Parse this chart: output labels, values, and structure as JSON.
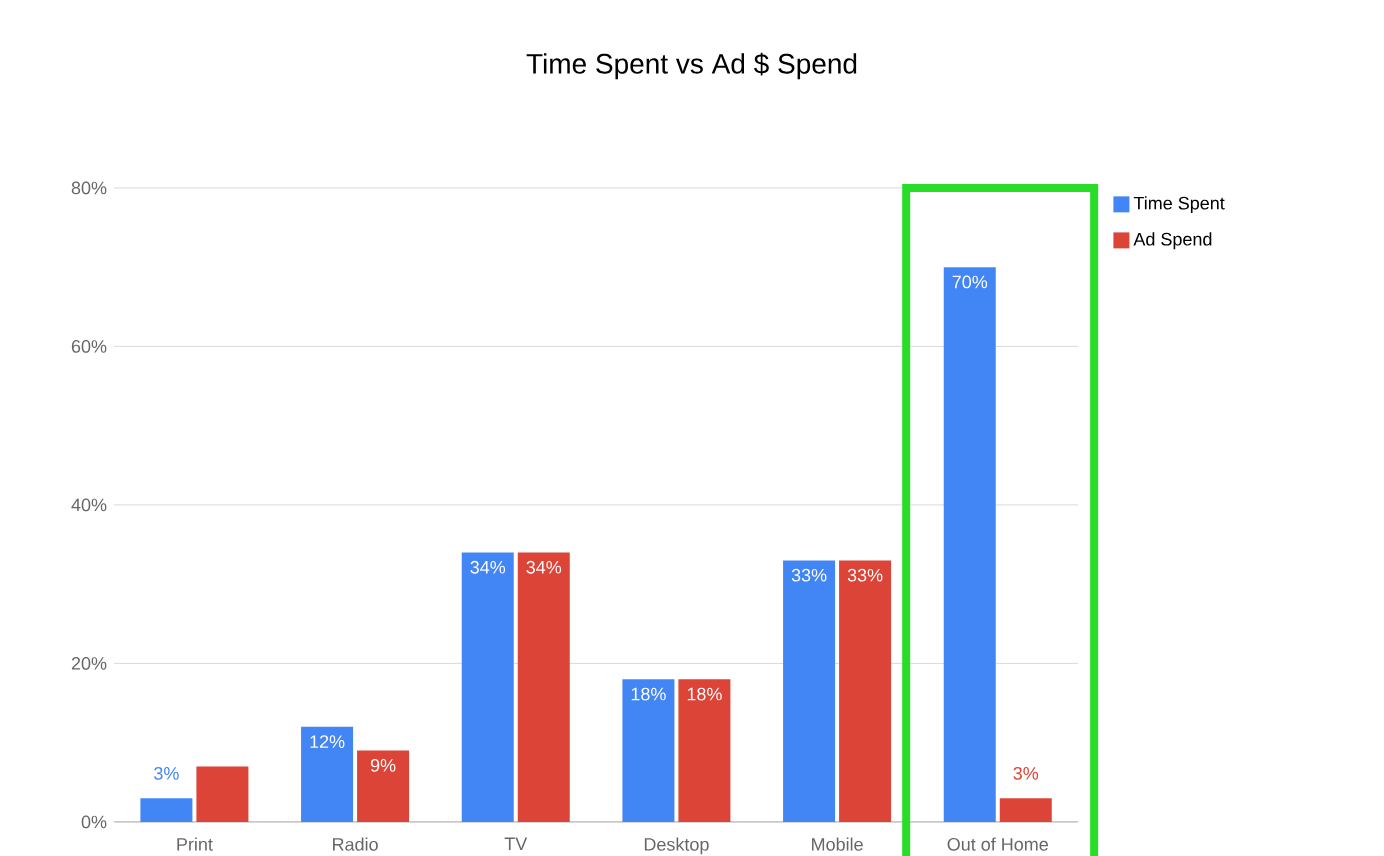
{
  "chart_data": {
    "type": "bar",
    "title": "Time Spent vs Ad $ Spend",
    "categories": [
      "Print",
      "Radio",
      "TV",
      "Desktop",
      "Mobile",
      "Out of Home"
    ],
    "series": [
      {
        "name": "Time Spent",
        "color": "#4285f4",
        "values": [
          3,
          12,
          34,
          18,
          33,
          70
        ],
        "value_labels": [
          "3%",
          "12%",
          "34%",
          "18%",
          "33%",
          "70%"
        ]
      },
      {
        "name": "Ad Spend",
        "color": "#db4437",
        "values": [
          7,
          9,
          34,
          18,
          33,
          3
        ],
        "value_labels": [
          null,
          "9%",
          "34%",
          "18%",
          "33%",
          "3%"
        ]
      }
    ],
    "ylim": [
      0,
      80
    ],
    "yticks": [
      {
        "value": 0,
        "label": "0%"
      },
      {
        "value": 20,
        "label": "20%"
      },
      {
        "value": 40,
        "label": "40%"
      },
      {
        "value": 60,
        "label": "60%"
      },
      {
        "value": 80,
        "label": "80%"
      }
    ],
    "grid": "y",
    "legend": "right"
  }
}
